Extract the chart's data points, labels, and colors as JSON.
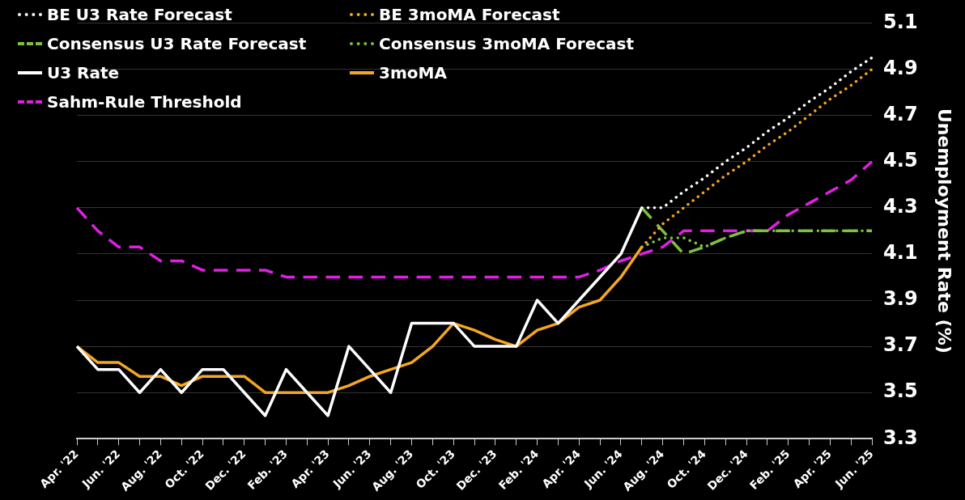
{
  "chart_data": {
    "type": "line",
    "ylabel": "Unemployment Rate (%)",
    "categories": [
      "Apr. '22",
      null,
      "Jun. '22",
      null,
      "Aug. '22",
      null,
      "Oct. '22",
      null,
      "Dec. '22",
      null,
      "Feb. '23",
      null,
      "Apr. '23",
      null,
      "Jun. '23",
      null,
      "Aug. '23",
      null,
      "Oct. '23",
      null,
      "Dec. '23",
      null,
      "Feb. '24",
      null,
      "Apr. '24",
      null,
      "Jun. '24",
      null,
      "Aug. '24",
      null,
      "Oct. '24",
      null,
      "Dec. '24",
      null,
      "Feb. '25",
      null,
      "Apr. '25",
      null,
      "Jun. '25"
    ],
    "series": [
      {
        "name": "BE U3 Rate Forecast",
        "color": "#ffffff",
        "line_style": "dotted",
        "values": [
          null,
          null,
          null,
          null,
          null,
          null,
          null,
          null,
          null,
          null,
          null,
          null,
          null,
          null,
          null,
          null,
          null,
          null,
          null,
          null,
          null,
          null,
          null,
          null,
          null,
          null,
          null,
          4.3,
          4.3,
          4.37,
          4.43,
          4.5,
          4.56,
          4.63,
          4.69,
          4.76,
          4.82,
          4.89,
          4.95
        ]
      },
      {
        "name": "BE 3moMA Forecast",
        "color": "#f5a623",
        "line_style": "dotted",
        "values": [
          null,
          null,
          null,
          null,
          null,
          null,
          null,
          null,
          null,
          null,
          null,
          null,
          null,
          null,
          null,
          null,
          null,
          null,
          null,
          null,
          null,
          null,
          null,
          null,
          null,
          null,
          null,
          4.13,
          4.23,
          4.3,
          4.37,
          4.44,
          4.5,
          4.57,
          4.63,
          4.7,
          4.77,
          4.83,
          4.9
        ]
      },
      {
        "name": "Consensus U3 Rate Forecast",
        "color": "#7dc142",
        "line_style": "dashed",
        "values": [
          null,
          null,
          null,
          null,
          null,
          null,
          null,
          null,
          null,
          null,
          null,
          null,
          null,
          null,
          null,
          null,
          null,
          null,
          null,
          null,
          null,
          null,
          null,
          null,
          null,
          null,
          null,
          4.3,
          4.2,
          4.1,
          4.13,
          4.17,
          4.2,
          4.2,
          4.2,
          4.2,
          4.2,
          4.2,
          4.2
        ]
      },
      {
        "name": "Consensus 3moMA Forecast",
        "color": "#7dc142",
        "line_style": "dotted",
        "values": [
          null,
          null,
          null,
          null,
          null,
          null,
          null,
          null,
          null,
          null,
          null,
          null,
          null,
          null,
          null,
          null,
          null,
          null,
          null,
          null,
          null,
          null,
          null,
          null,
          null,
          null,
          null,
          4.13,
          4.17,
          4.17,
          4.13,
          4.17,
          4.2,
          4.2,
          4.2,
          4.2,
          4.2,
          4.2,
          4.2
        ]
      },
      {
        "name": "U3 Rate",
        "color": "#ffffff",
        "line_style": "solid",
        "values": [
          3.7,
          3.6,
          3.6,
          3.5,
          3.6,
          3.5,
          3.6,
          3.6,
          3.5,
          3.4,
          3.6,
          3.5,
          3.4,
          3.7,
          3.6,
          3.5,
          3.8,
          3.8,
          3.8,
          3.7,
          3.7,
          3.7,
          3.9,
          3.8,
          3.9,
          4.0,
          4.1,
          4.3,
          null,
          null,
          null,
          null,
          null,
          null,
          null,
          null,
          null,
          null,
          null
        ]
      },
      {
        "name": "3moMA",
        "color": "#f5a623",
        "line_style": "solid",
        "values": [
          3.7,
          3.63,
          3.63,
          3.57,
          3.57,
          3.53,
          3.57,
          3.57,
          3.57,
          3.5,
          3.5,
          3.5,
          3.5,
          3.53,
          3.57,
          3.6,
          3.63,
          3.7,
          3.8,
          3.77,
          3.73,
          3.7,
          3.77,
          3.8,
          3.87,
          3.9,
          4.0,
          4.13,
          null,
          null,
          null,
          null,
          null,
          null,
          null,
          null,
          null,
          null,
          null
        ]
      },
      {
        "name": "Sahm-Rule Threshold",
        "color": "#e020e0",
        "line_style": "dashed",
        "values": [
          4.3,
          4.2,
          4.13,
          4.13,
          4.07,
          4.07,
          4.03,
          4.03,
          4.03,
          4.03,
          4.0,
          4.0,
          4.0,
          4.0,
          4.0,
          4.0,
          4.0,
          4.0,
          4.0,
          4.0,
          4.0,
          4.0,
          4.0,
          4.0,
          4.0,
          4.03,
          4.07,
          4.1,
          4.13,
          4.2,
          4.2,
          4.2,
          4.2,
          4.2,
          4.27,
          4.32,
          4.37,
          4.42,
          4.5
        ]
      }
    ],
    "ylim": [
      3.3,
      5.1
    ],
    "yticks": [
      3.3,
      3.5,
      3.7,
      3.9,
      4.1,
      4.3,
      4.5,
      4.7,
      4.9,
      5.1
    ],
    "grid": "y",
    "legend": "top left",
    "marker": "none"
  }
}
